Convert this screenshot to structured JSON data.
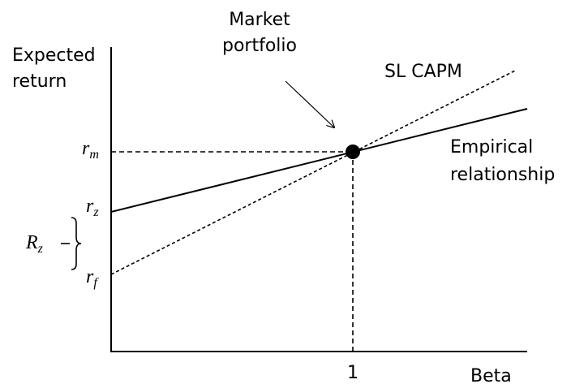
{
  "y_axis_label": [
    "Expected",
    "return"
  ],
  "x_axis_label": "Beta",
  "x_marker": "1",
  "point_label": [
    "Market",
    "portfolio"
  ],
  "lines": [
    {
      "label": "SL CAPM"
    },
    {
      "label": [
        "Empirical",
        "relationship"
      ]
    }
  ],
  "y_labels": [
    {
      "base": "r",
      "sub": "m"
    },
    {
      "base": "r",
      "sub": "z"
    },
    {
      "base": "r",
      "sub": "f"
    }
  ],
  "brace_label": {
    "base": "R",
    "sub": "z"
  }
}
